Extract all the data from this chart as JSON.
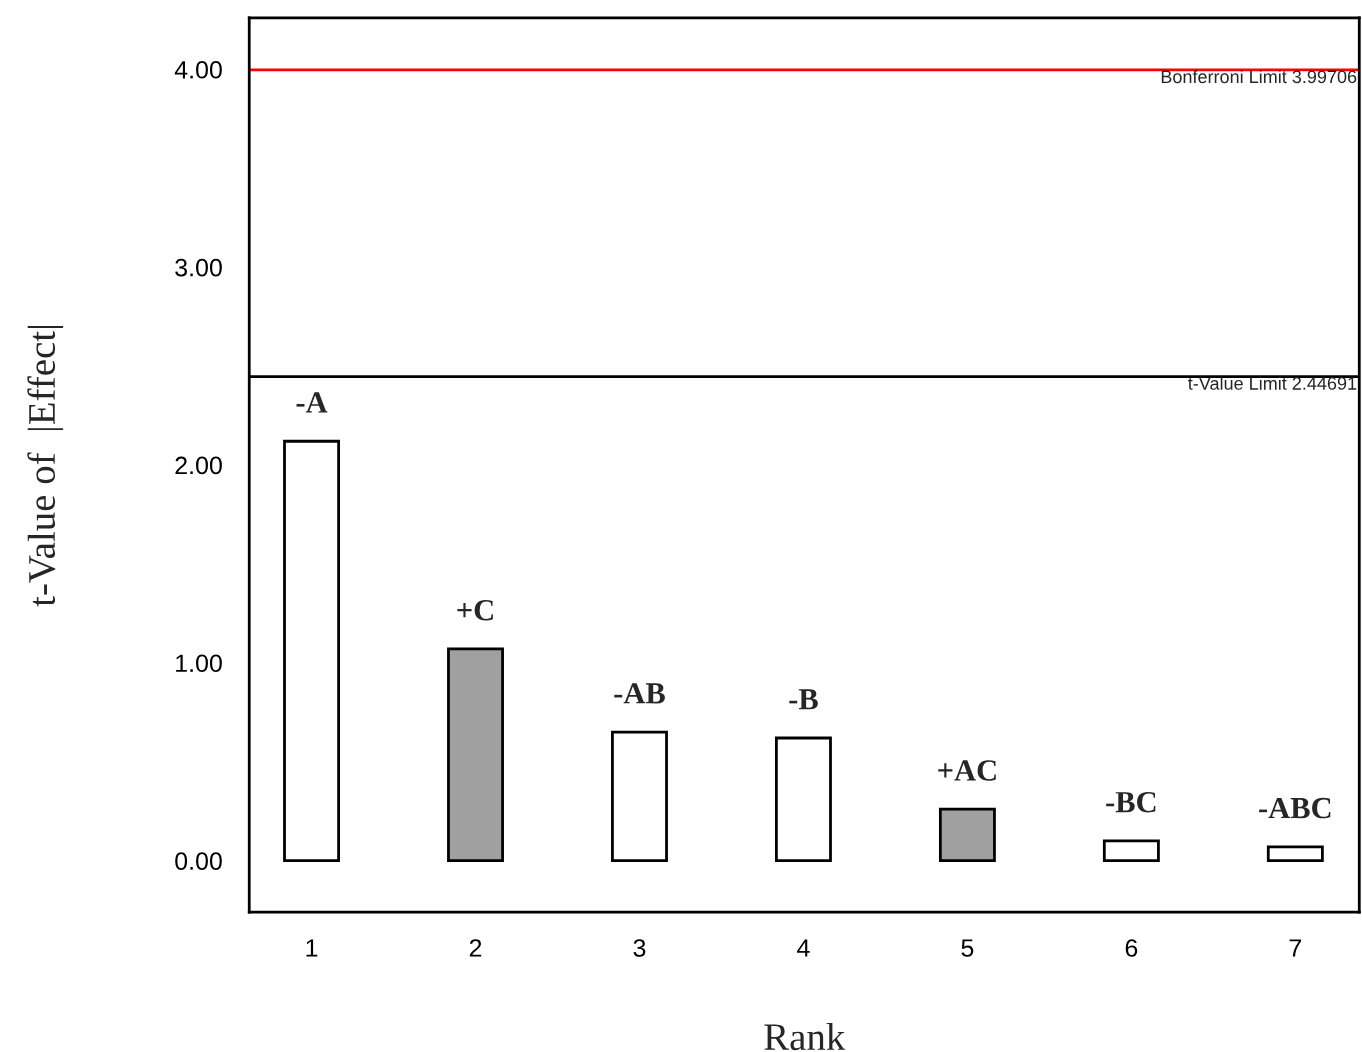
{
  "chart_data": {
    "type": "bar",
    "xlabel": "Rank",
    "ylabel": "t-Value of  |Effect|",
    "categories": [
      "1",
      "2",
      "3",
      "4",
      "5",
      "6",
      "7"
    ],
    "values": [
      2.12,
      1.07,
      0.65,
      0.62,
      0.26,
      0.1,
      0.07
    ],
    "colors": [
      "#ffffff",
      "#a0a0a0",
      "#ffffff",
      "#ffffff",
      "#a0a0a0",
      "#ffffff",
      "#ffffff"
    ],
    "ylim": [
      -0.26,
      4.26
    ],
    "yticks": [
      {
        "value": 0,
        "label": "0.00"
      },
      {
        "value": 1,
        "label": "1.00"
      },
      {
        "value": 2,
        "label": "2.00"
      },
      {
        "value": 3,
        "label": "3.00"
      },
      {
        "value": 4,
        "label": "4.00"
      }
    ],
    "ref_lines": [
      {
        "axis": "y",
        "value": 3.99706,
        "label": "Bonferroni Limit 3.99706",
        "color": "#ff0000"
      },
      {
        "axis": "y",
        "value": 2.44691,
        "label": "t-Value Limit 2.44691",
        "color": "#000000"
      }
    ],
    "annotations": [
      {
        "text": "-A",
        "x": "1",
        "y": 2.12
      },
      {
        "text": "+C",
        "x": "2",
        "y": 1.07
      },
      {
        "text": "-AB",
        "x": "3",
        "y": 0.65
      },
      {
        "text": "-B",
        "x": "4",
        "y": 0.62
      },
      {
        "text": "+AC",
        "x": "5",
        "y": 0.26
      },
      {
        "text": "-BC",
        "x": "6",
        "y": 0.1
      },
      {
        "text": "-ABC",
        "x": "7",
        "y": 0.07
      }
    ],
    "grid": false,
    "legend": false
  }
}
